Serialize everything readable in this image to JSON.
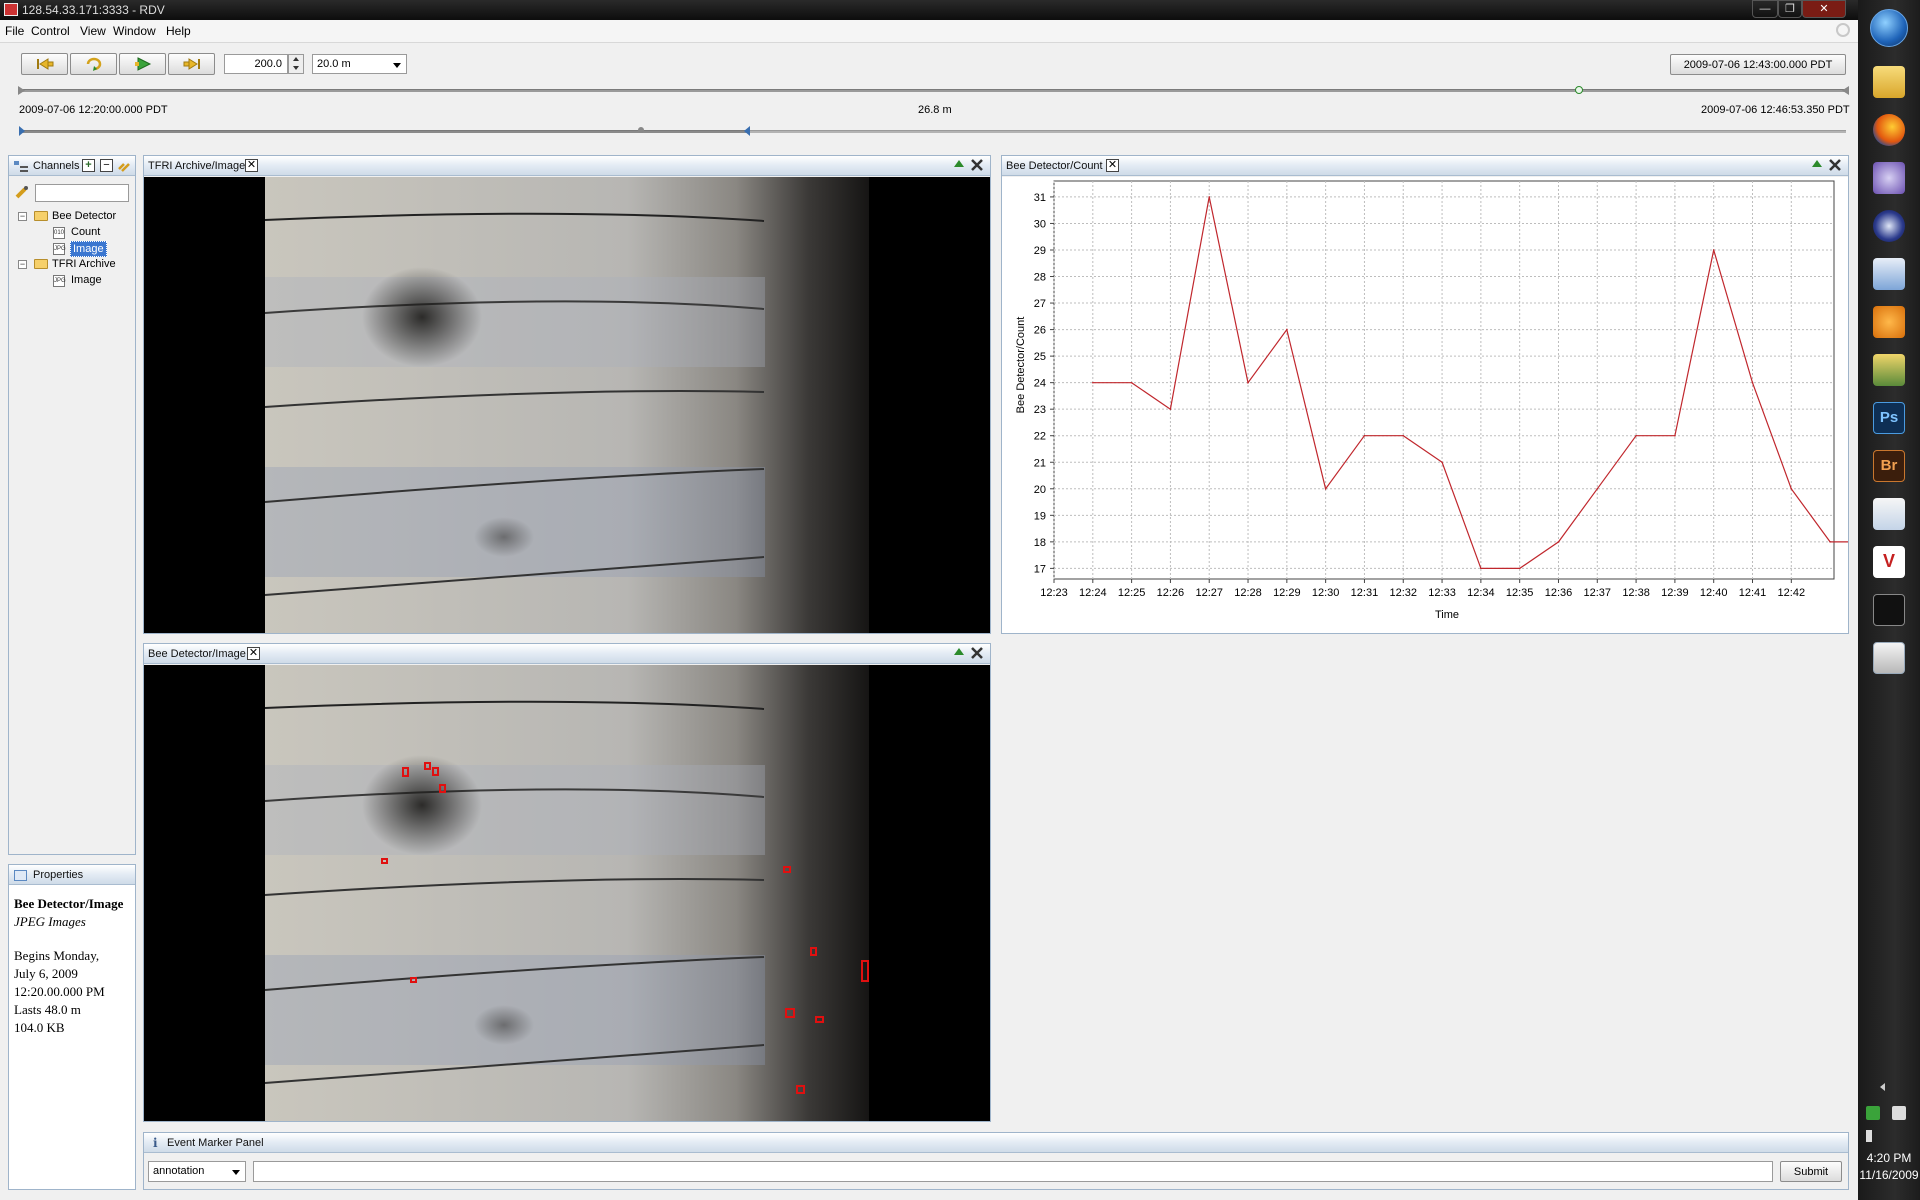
{
  "window": {
    "title": "128.54.33.171:3333 - RDV",
    "buttons": [
      "—",
      "❐",
      "✕"
    ]
  },
  "menubar": {
    "items": [
      "File",
      "Control",
      "View",
      "Window",
      "Help"
    ]
  },
  "toolbar": {
    "buttons": [
      "go-to-start",
      "loop",
      "play",
      "go-to-end"
    ],
    "rate_value": "200.0",
    "duration_value": "20.0 m",
    "current_time": "2009-07-06 12:43:00.000 PDT"
  },
  "timeline": {
    "start_label": "2009-07-06 12:20:00.000 PDT",
    "span_label": "26.8 m",
    "end_label": "2009-07-06 12:46:53.350 PDT"
  },
  "channels_panel": {
    "title": "Channels",
    "filter_placeholder": "",
    "tree": {
      "bee_detector": {
        "label": "Bee Detector",
        "children": [
          "Count",
          "Image"
        ],
        "icons": [
          "010",
          "JPG"
        ]
      },
      "tfri_archive": {
        "label": "TFRI Archive",
        "children": [
          "Image"
        ],
        "icons": [
          "JPG"
        ]
      }
    }
  },
  "properties_panel": {
    "title": "Properties",
    "name": "Bee Detector/Image",
    "type": "JPEG Images",
    "begins_line1": "Begins Monday,",
    "begins_line2": "July 6, 2009",
    "begins_line3": "12:20.00.000 PM",
    "lasts": "Lasts 48.0 m",
    "size": "104.0 KB"
  },
  "panels": {
    "tfri_image": {
      "title": "TFRI Archive/Image"
    },
    "bee_image": {
      "title": "Bee Detector/Image"
    },
    "bee_count": {
      "title": "Bee Detector/Count"
    }
  },
  "chart_data": {
    "type": "line",
    "title": "",
    "xlabel": "Time",
    "ylabel": "Bee Detector/Count",
    "x_ticks": [
      "12:23",
      "12:24",
      "12:25",
      "12:26",
      "12:27",
      "12:28",
      "12:29",
      "12:30",
      "12:31",
      "12:32",
      "12:33",
      "12:34",
      "12:35",
      "12:36",
      "12:37",
      "12:38",
      "12:39",
      "12:40",
      "12:41",
      "12:42"
    ],
    "y_ticks": [
      17,
      18,
      19,
      20,
      21,
      22,
      23,
      24,
      25,
      26,
      27,
      28,
      29,
      30,
      31
    ],
    "ylim": [
      16.6,
      31.6
    ],
    "xlim": [
      0,
      20.1
    ],
    "grid": true,
    "color": "#c0272d",
    "series": [
      {
        "x": [
          1,
          2,
          3,
          4,
          5,
          6,
          7,
          8,
          9,
          10,
          11,
          12,
          13,
          14,
          15,
          16,
          17,
          18,
          19,
          20,
          20.9
        ],
        "values": [
          24,
          24,
          23,
          31,
          24,
          26,
          20,
          22,
          22,
          21,
          17,
          17,
          18,
          20,
          22,
          22,
          29,
          24,
          20,
          18,
          18
        ]
      }
    ]
  },
  "event_marker": {
    "title": "Event Marker Panel",
    "type_value": "annotation",
    "text_value": "",
    "submit_label": "Submit"
  },
  "system_tray": {
    "time": "4:20 PM",
    "date": "11/16/2009"
  }
}
